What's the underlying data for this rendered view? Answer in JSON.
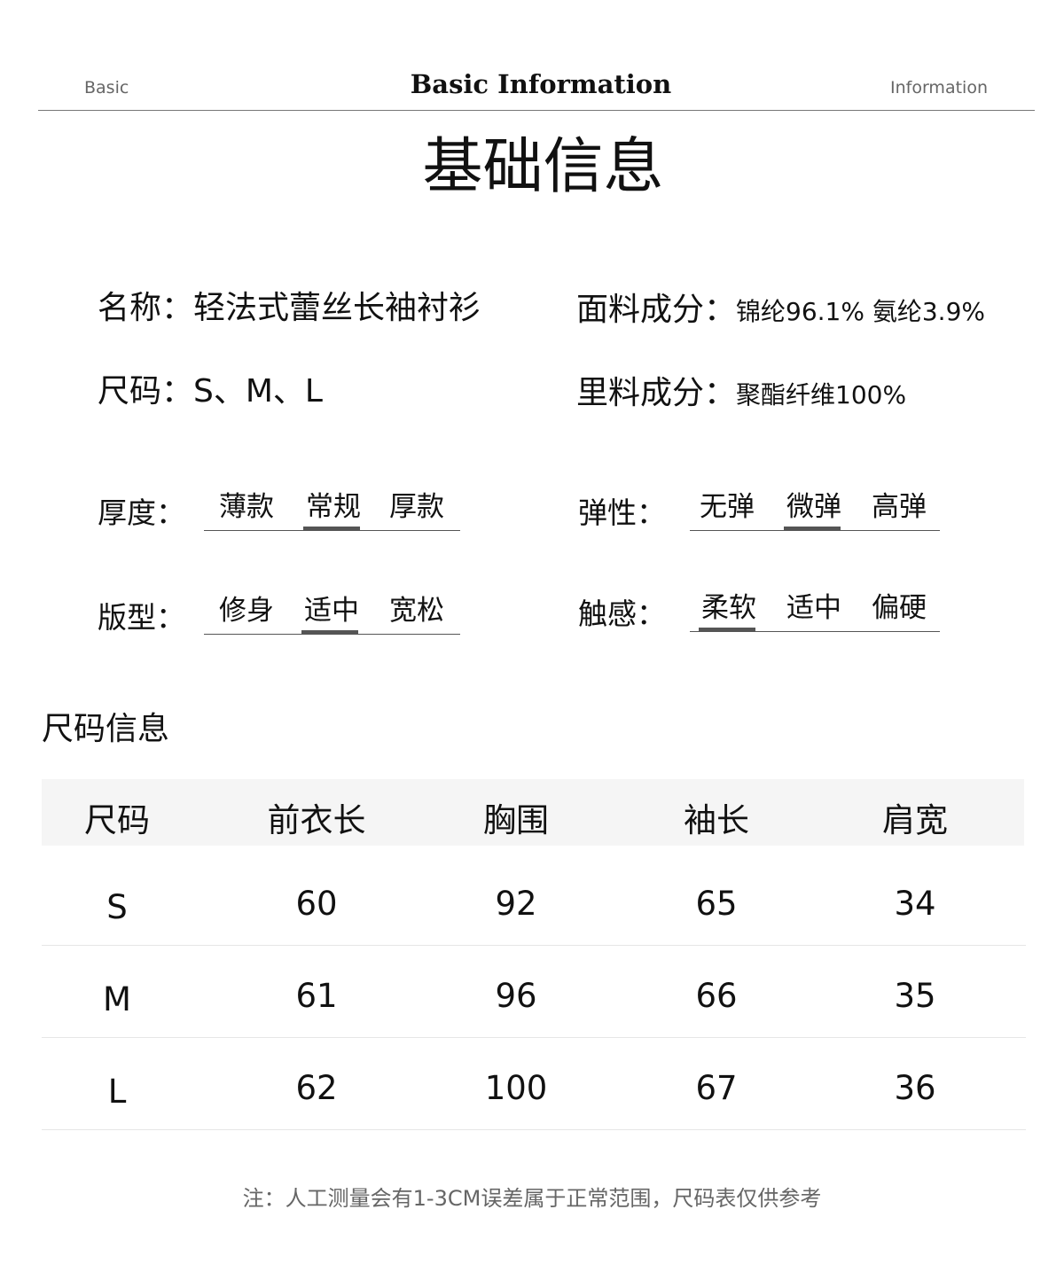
{
  "header": {
    "left": "Basic",
    "center": "Basic Information",
    "right": "Information"
  },
  "title": "基础信息",
  "info": [
    {
      "label": "名称：",
      "value": "轻法式蕾丝长袖衬衫"
    },
    {
      "label": "面料成分：",
      "value": "锦纶96.1% 氨纶3.9%"
    },
    {
      "label": "尺码：",
      "value": "S、M、L"
    },
    {
      "label": "里料成分：",
      "value": "聚酯纤维100%"
    }
  ],
  "scales": [
    {
      "label": "厚度：",
      "options": [
        "薄款",
        "常规",
        "厚款"
      ],
      "selected": 1
    },
    {
      "label": "弹性：",
      "options": [
        "无弹",
        "微弹",
        "高弹"
      ],
      "selected": 1
    },
    {
      "label": "版型：",
      "options": [
        "修身",
        "适中",
        "宽松"
      ],
      "selected": 1
    },
    {
      "label": "触感：",
      "options": [
        "柔软",
        "适中",
        "偏硬"
      ],
      "selected": 0
    }
  ],
  "size_section": "尺码信息",
  "table": {
    "headers": [
      "尺码",
      "前衣长",
      "胸围",
      "袖长",
      "肩宽"
    ],
    "rows": [
      [
        "S",
        "60",
        "92",
        "65",
        "34"
      ],
      [
        "M",
        "61",
        "96",
        "66",
        "35"
      ],
      [
        "L",
        "62",
        "100",
        "67",
        "36"
      ]
    ]
  },
  "note": "注：人工测量会有1-3CM误差属于正常范围，尺码表仅供参考"
}
